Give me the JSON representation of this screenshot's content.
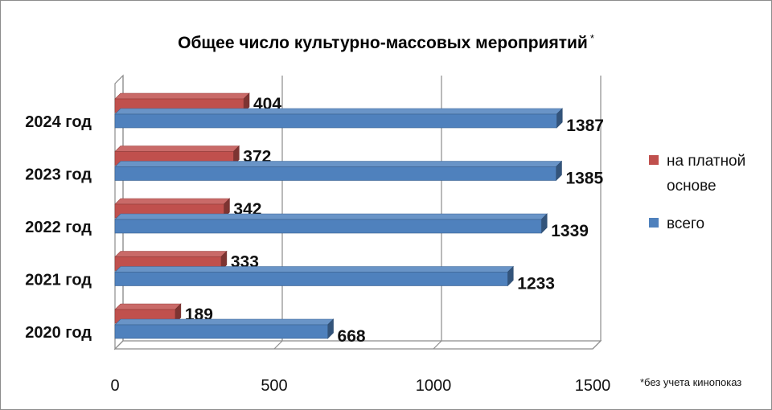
{
  "chart_data": {
    "type": "bar",
    "orientation": "horizontal",
    "style": "3d-clustered",
    "title": "Общее число культурно-массовых мероприятий",
    "title_marker": "*",
    "categories": [
      "2020 год",
      "2021 год",
      "2022 год",
      "2023 год",
      "2024 год"
    ],
    "series": [
      {
        "name": "на платной основе",
        "values": [
          189,
          333,
          342,
          372,
          404
        ],
        "color": "#c0504d"
      },
      {
        "name": "всего",
        "values": [
          668,
          1233,
          1339,
          1385,
          1387
        ],
        "color": "#4f81bd"
      }
    ],
    "xlim": [
      0,
      1500
    ],
    "xticks": [
      "0",
      "500",
      "1000",
      "1500"
    ],
    "grid": true,
    "legend_position": "right",
    "footnote": "*без учета кинопоказ"
  }
}
